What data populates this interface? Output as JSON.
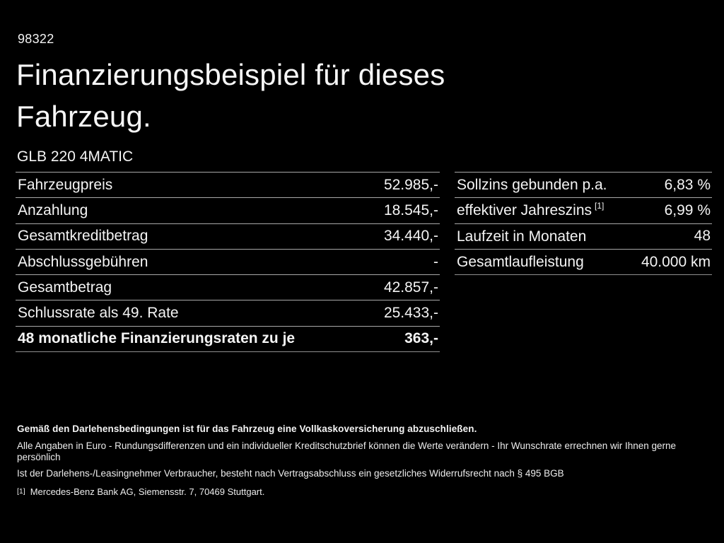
{
  "page": {
    "id_number": "98322",
    "title_line1": "Finanzierungsbeispiel für dieses",
    "title_line2": "Fahrzeug.",
    "model": "GLB 220 4MATIC"
  },
  "financing_table": {
    "rows": [
      {
        "label": "Fahrzeugpreis",
        "value": "52.985,-"
      },
      {
        "label": "Anzahlung",
        "value": "18.545,-"
      },
      {
        "label": "Gesamtkreditbetrag",
        "value": "34.440,-"
      },
      {
        "label": "Abschlussgebühren",
        "value": "-"
      },
      {
        "label": "Gesamtbetrag",
        "value": "42.857,-"
      },
      {
        "label": "Schlussrate als 49. Rate",
        "value": "25.433,-"
      },
      {
        "label": "48 monatliche Finanzierungsraten zu je",
        "value": "363,-"
      }
    ]
  },
  "conditions_table": {
    "rows": [
      {
        "label": "Sollzins gebunden p.a.",
        "sup": "",
        "value": "6,83 %"
      },
      {
        "label": "effektiver Jahreszins",
        "sup": "[1]",
        "value": "6,99 %"
      },
      {
        "label": "Laufzeit in Monaten",
        "sup": "",
        "value": "48"
      },
      {
        "label": "Gesamtlaufleistung",
        "sup": "",
        "value": "40.000 km"
      }
    ]
  },
  "footer": {
    "insurance_note": "Gemäß den Darlehensbedingungen ist für das Fahrzeug eine Vollkaskoversicherung abzuschließen.",
    "note_line1": "Alle Angaben in Euro - Rundungsdifferenzen und ein individueller Kreditschutzbrief können die Werte verändern - Ihr Wunschrate errechnen wir Ihnen gerne persönlich",
    "note_line2": "Ist der Darlehens-/Leasingnehmer Verbraucher, besteht nach Vertragsabschluss ein gesetzliches Widerrufsrecht nach § 495 BGB",
    "footnote_marker": "[1]",
    "footnote_text": "Mercedes-Benz Bank AG, Siemensstr. 7, 70469 Stuttgart."
  },
  "colors": {
    "background": "#000000",
    "text": "#f4f4f4",
    "divider": "#a8a8a8"
  }
}
